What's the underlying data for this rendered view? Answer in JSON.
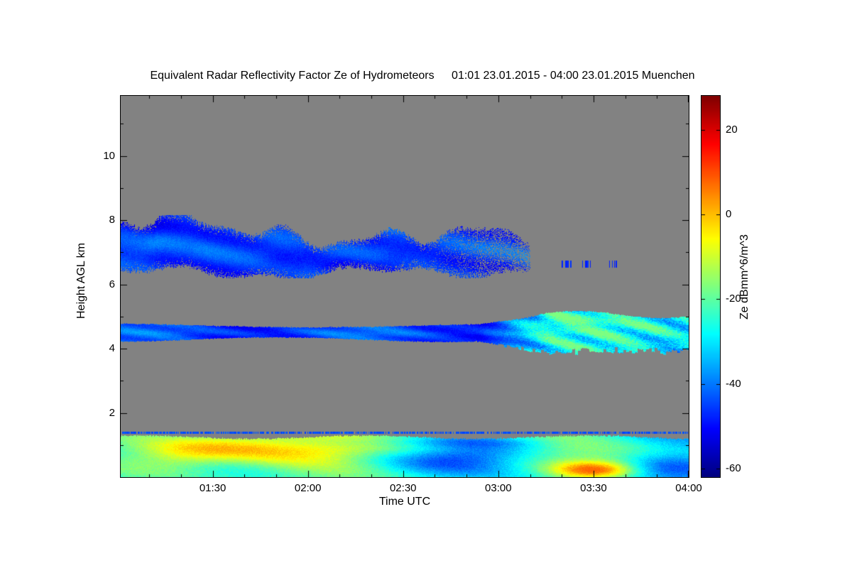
{
  "chart_data": {
    "type": "heatmap",
    "title": "Equivalent Radar Reflectivity Factor Ze of Hydrometeors",
    "subtitle": "01:01 23.01.2015 - 04:00 23.01.2015 Muenchen",
    "station": "Muenchen",
    "time_start_utc": "01:01 23.01.2015",
    "time_end_utc": "04:00 23.01.2015",
    "xlabel": "Time UTC",
    "ylabel": "Height AGL km",
    "x_ticks": [
      "01:30",
      "02:00",
      "02:30",
      "03:00",
      "03:30",
      "04:00"
    ],
    "x_tick_minutes": [
      90,
      120,
      150,
      180,
      210,
      240
    ],
    "x_minutes_range": [
      61,
      240
    ],
    "x_minor_step_minutes": 10,
    "y_ticks": [
      2,
      4,
      6,
      8,
      10
    ],
    "y_range_km": [
      0,
      11.87
    ],
    "y_minor_step_km": 1,
    "plot_bg_color": "#828282",
    "colorbar": {
      "label": "Ze dBmm^6/m^3",
      "ticks": [
        20,
        0,
        -20,
        -40,
        -60
      ],
      "range": [
        -62,
        28
      ],
      "colormap": "jet"
    },
    "layers": [
      {
        "name": "upper-cloud-layer",
        "description": "Broken ice-cloud band, weak blue reflectivity with lighter filaments, dissipating after 03:00 leaving small specks near 03:15-03:25",
        "time_span": [
          "01:01",
          "03:10"
        ],
        "height_km": [
          6.3,
          8.2
        ],
        "ze_dB_range": [
          -55,
          -38
        ]
      },
      {
        "name": "mid-level-layer",
        "description": "Thin persistent cloud layer near 4.5 km across the whole period, thickening and intensifying to cyan/green after 03:00 with ragged base",
        "time_span": [
          "01:01",
          "04:00"
        ],
        "height_km": [
          3.9,
          5.1
        ],
        "ze_dB_range": [
          -50,
          -18
        ]
      },
      {
        "name": "boundary-layer-echo",
        "description": "Shallow strong echo layer below about 1.3 km, cyan-green with yellow maxima near 01:30-01:45 and a yellow-orange core near 03:30, darker blue pockets near 02:45",
        "time_span": [
          "01:01",
          "04:00"
        ],
        "height_km": [
          0,
          1.4
        ],
        "ze_dB_range": [
          -50,
          8
        ]
      }
    ]
  }
}
